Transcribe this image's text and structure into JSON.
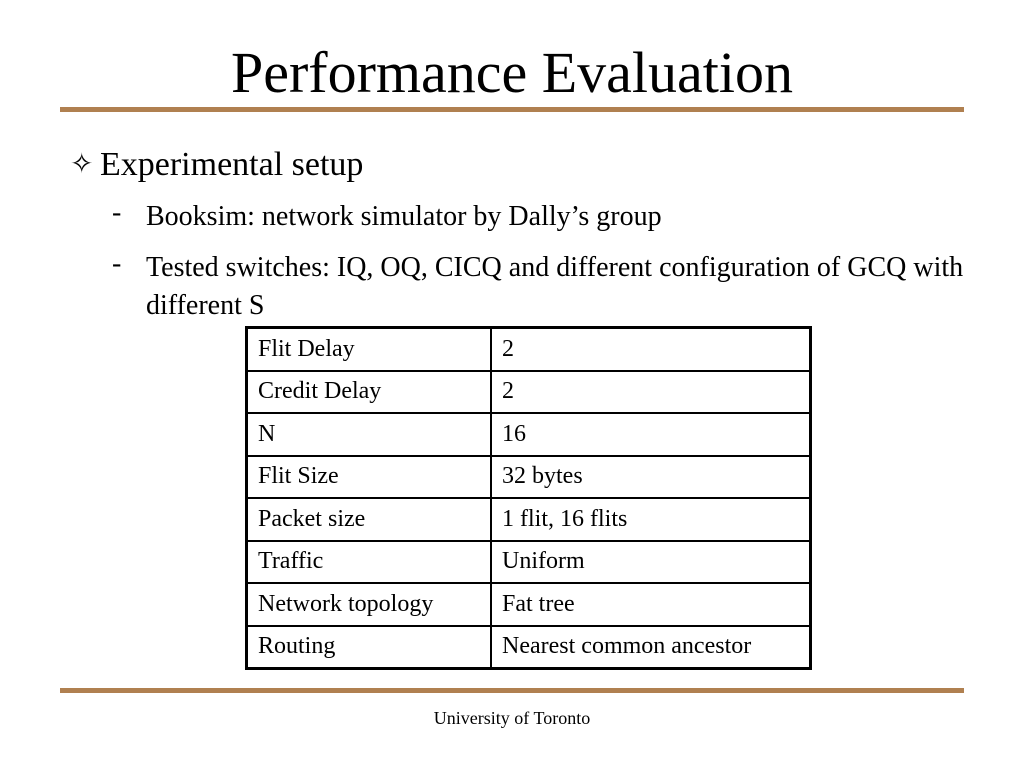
{
  "slide": {
    "title": "Performance Evaluation",
    "bullet": {
      "icon": "diamond-outline-icon",
      "icon_glyph": "✧",
      "text": "Experimental setup"
    },
    "sub_bullets": [
      {
        "marker": "-",
        "text": "Booksim: network simulator by Dally’s group"
      },
      {
        "marker": "-",
        "text": "Tested switches: IQ, OQ, CICQ and different configuration of GCQ with different S"
      }
    ],
    "table": {
      "rows": [
        {
          "param": "Flit Delay",
          "value": "2"
        },
        {
          "param": "Credit Delay",
          "value": "2"
        },
        {
          "param": "N",
          "value": "16"
        },
        {
          "param": "Flit Size",
          "value": "32 bytes"
        },
        {
          "param": "Packet size",
          "value": "1 flit, 16 flits"
        },
        {
          "param": "Traffic",
          "value": "Uniform"
        },
        {
          "param": "Network topology",
          "value": "Fat tree"
        },
        {
          "param": "Routing",
          "value": "Nearest common ancestor"
        }
      ]
    },
    "footer": "University of Toronto",
    "colors": {
      "rule": "#b08050",
      "text": "#000000",
      "background": "#ffffff"
    }
  }
}
